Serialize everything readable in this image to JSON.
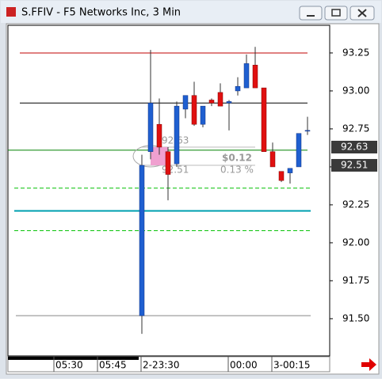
{
  "chart_data": {
    "type": "candlestick",
    "title": "S.FFIV - F5 Networks Inc, 3 Min",
    "up_color": "#1f5fd0",
    "down_color": "#e01010",
    "open": [
      91.52,
      92.6,
      92.78,
      92.6,
      92.52,
      92.88,
      92.97,
      92.78,
      92.94,
      92.99,
      92.92,
      93.0,
      93.02,
      93.17,
      93.02,
      92.6,
      92.47,
      92.46,
      92.5,
      92.74
    ],
    "high": [
      92.58,
      93.27,
      92.95,
      92.63,
      92.93,
      92.97,
      93.06,
      92.9,
      92.95,
      93.05,
      92.94,
      93.09,
      93.24,
      93.29,
      93.02,
      92.66,
      92.47,
      92.49,
      92.72,
      92.83
    ],
    "low": [
      91.4,
      92.55,
      92.58,
      92.28,
      92.5,
      92.82,
      92.77,
      92.76,
      92.9,
      92.9,
      92.74,
      92.97,
      93.02,
      93.02,
      92.6,
      92.5,
      92.4,
      92.39,
      92.5,
      92.71
    ],
    "close": [
      92.51,
      92.92,
      92.63,
      92.45,
      92.9,
      92.97,
      92.78,
      92.9,
      92.92,
      92.9,
      92.93,
      93.03,
      93.18,
      93.02,
      92.6,
      92.5,
      92.41,
      92.49,
      92.72,
      92.74
    ],
    "x_labels": [
      "05:30",
      "05:45",
      "2-23:30",
      "00:00",
      "3-00:15"
    ],
    "ylim": [
      91.255,
      93.432
    ],
    "yticks": [
      {
        "value": 91.5,
        "label": "91.50"
      },
      91.75,
      {
        "value": 92,
        "label": "92.00"
      },
      92.25,
      {
        "value": 92.5,
        "label": "92.50"
      },
      92.75,
      {
        "value": 93,
        "label": "93.00"
      },
      93.25
    ],
    "lines": [
      {
        "value": 93.25,
        "color": "#c00000",
        "dashed": false
      },
      {
        "value": 92.92,
        "color": "#000000",
        "dashed": false
      },
      {
        "value": 92.61,
        "color": "#008000",
        "dashed": false
      },
      {
        "value": 92.36,
        "color": "#00c000",
        "dashed": true
      },
      {
        "value": 92.21,
        "color": "#00a0b0",
        "dashed": false
      },
      {
        "value": 92.08,
        "color": "#00c000",
        "dashed": true
      },
      {
        "value": 91.52,
        "color": "#888888",
        "dashed": false
      }
    ],
    "measure": {
      "start": {
        "value": 92.63,
        "label": "92.63"
      },
      "end": {
        "value": 92.51,
        "label": "92.51"
      },
      "change_label": "$0.12",
      "percent_label": "0.13 %"
    }
  }
}
